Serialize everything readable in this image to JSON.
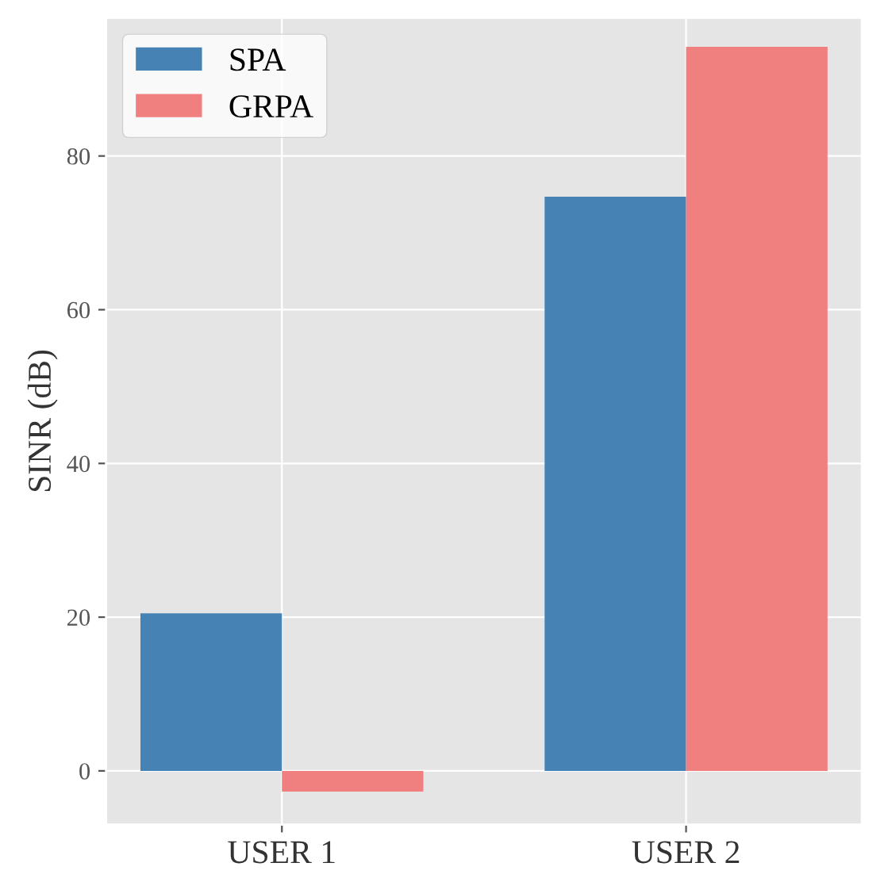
{
  "chart_data": {
    "type": "bar",
    "ylabel": "SINR (dB)",
    "categories": [
      "USER 1",
      "USER 2"
    ],
    "series": [
      {
        "name": "SPA",
        "color": "#4682b4",
        "values": [
          20.5,
          74.7
        ]
      },
      {
        "name": "GRPA",
        "color": "#f08080",
        "values": [
          -2.7,
          94.2
        ]
      }
    ],
    "ylim": [
      -7,
      98
    ],
    "yticks": [
      0,
      20,
      40,
      60,
      80
    ],
    "grid": true,
    "legend": "top left"
  }
}
